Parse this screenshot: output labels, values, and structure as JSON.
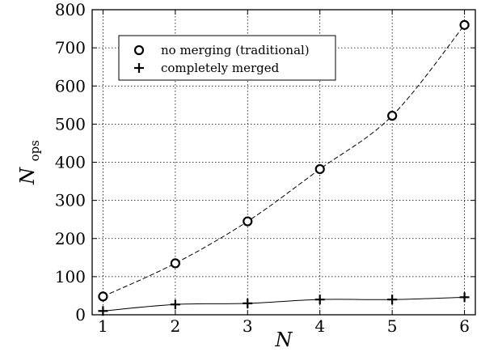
{
  "chart_data": {
    "type": "line",
    "xlabel": "N",
    "ylabel": {
      "main": "N",
      "subscript": "ops"
    },
    "xlim": [
      0.85,
      6.15
    ],
    "ylim": [
      0,
      800
    ],
    "x_ticks": [
      1,
      2,
      3,
      4,
      5,
      6
    ],
    "y_ticks": [
      0,
      100,
      200,
      300,
      400,
      500,
      600,
      700,
      800
    ],
    "grid": true,
    "legend_position": "top-left",
    "x": [
      1,
      2,
      3,
      4,
      5,
      6
    ],
    "series": [
      {
        "name": "no merging (traditional)",
        "marker": "circle",
        "line_style": "dashed",
        "color": "#000000",
        "values": [
          48,
          135,
          245,
          382,
          522,
          760
        ]
      },
      {
        "name": "completely merged",
        "marker": "plus",
        "line_style": "solid",
        "color": "#000000",
        "values": [
          10,
          27,
          30,
          40,
          40,
          46
        ]
      }
    ]
  }
}
